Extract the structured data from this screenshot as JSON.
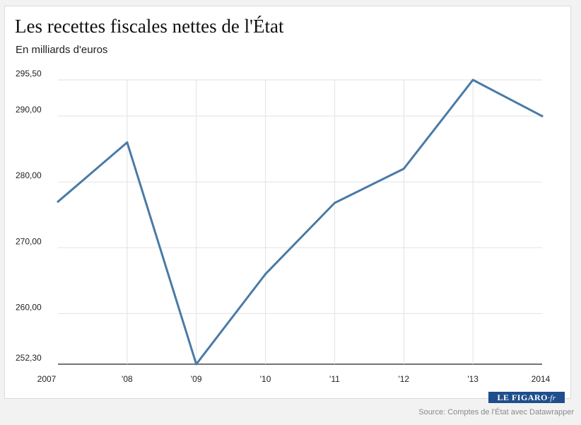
{
  "chart_data": {
    "type": "line",
    "title": "Les recettes fiscales nettes de l'État",
    "subtitle": "En milliards d'euros",
    "categories": [
      "2007",
      "'08",
      "'09",
      "'10",
      "'11",
      "'12",
      "'13",
      "2014"
    ],
    "series": [
      {
        "name": "Recettes fiscales nettes",
        "values": [
          277.0,
          286.0,
          252.3,
          266.0,
          276.8,
          282.0,
          295.5,
          290.0
        ]
      }
    ],
    "yticks": [
      {
        "value": 295.5,
        "label": "295,50"
      },
      {
        "value": 290.0,
        "label": "290,00"
      },
      {
        "value": 280.0,
        "label": "280,00"
      },
      {
        "value": 270.0,
        "label": "270,00"
      },
      {
        "value": 260.0,
        "label": "260,00"
      },
      {
        "value": 252.3,
        "label": "252,30"
      }
    ],
    "ylim": [
      252.3,
      295.5
    ],
    "xlabel": "",
    "ylabel": "",
    "grid": true,
    "colors": {
      "line": "#4a7aa7",
      "grid": "#e2e2e2",
      "axis": "#222222"
    }
  },
  "branding": {
    "logo_text": "LE FIGARO",
    "logo_suffix": "·fr",
    "source": "Source: Comptes de l'État avec Datawrapper"
  }
}
